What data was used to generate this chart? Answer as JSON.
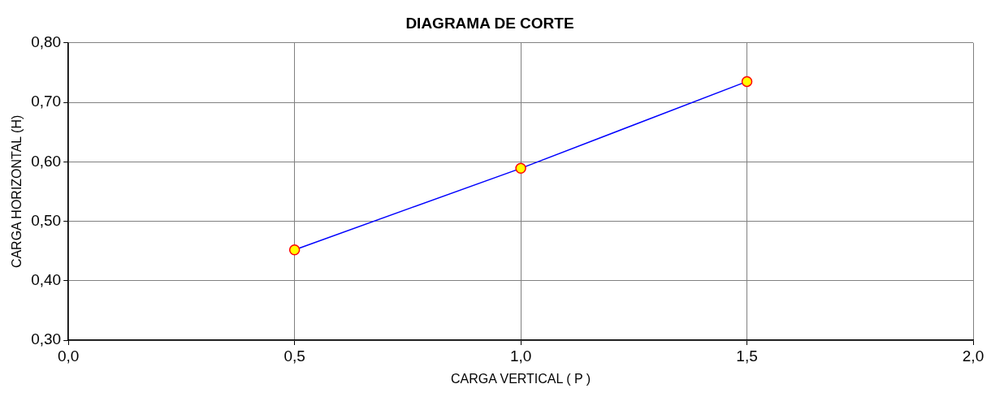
{
  "chart_data": {
    "type": "line",
    "title": "DIAGRAMA DE CORTE",
    "xlabel": "CARGA VERTICAL ( P )",
    "ylabel": "CARGA HORIZONTAL (H)",
    "x": [
      0.5,
      1.0,
      1.5
    ],
    "series": [
      {
        "color": "#0000ff",
        "values": [
          0.452,
          0.589,
          0.735
        ]
      }
    ],
    "xlim": [
      0,
      2
    ],
    "xticks": [
      {
        "value": 0,
        "label": "0,0"
      },
      {
        "value": 0.5,
        "label": "0,5"
      },
      {
        "value": 1,
        "label": "1,0"
      },
      {
        "value": 1.5,
        "label": "1,5"
      },
      {
        "value": 2,
        "label": "2,0"
      }
    ],
    "ylim": [
      0.3,
      0.8
    ],
    "yticks": [
      {
        "value": 0.3,
        "label": "0,30"
      },
      {
        "value": 0.4,
        "label": "0,40"
      },
      {
        "value": 0.5,
        "label": "0,50"
      },
      {
        "value": 0.6,
        "label": "0,60"
      },
      {
        "value": 0.7,
        "label": "0,70"
      },
      {
        "value": 0.8,
        "label": "0,80"
      }
    ],
    "grid": true,
    "marker": "circle",
    "line_style": "solid"
  }
}
